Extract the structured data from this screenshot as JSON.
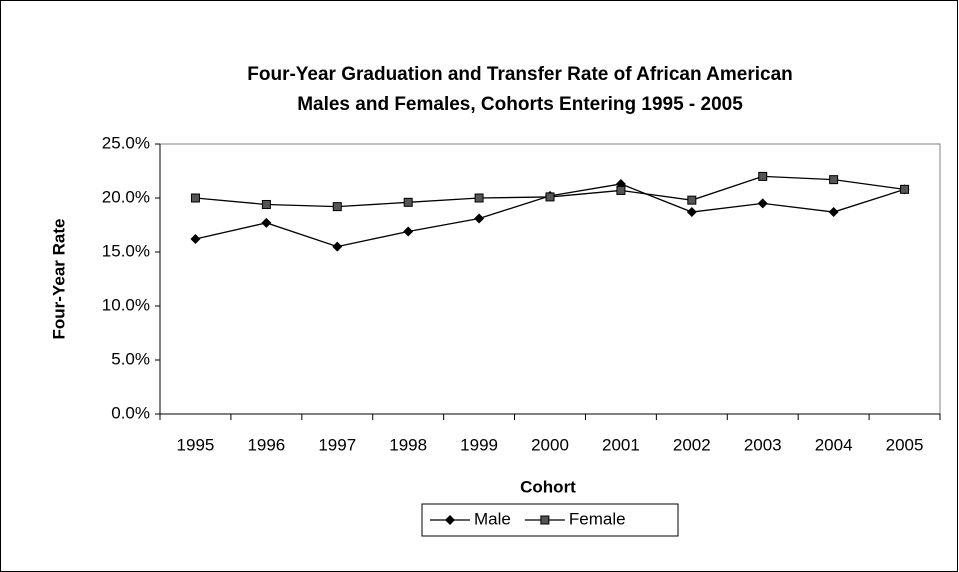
{
  "chart_data": {
    "type": "line",
    "title": [
      "Four-Year Graduation and Transfer Rate of African American",
      "Males and Females, Cohorts Entering 1995 - 2005"
    ],
    "x_label": "Cohort",
    "y_label": "Four-Year Rate",
    "categories": [
      "1995",
      "1996",
      "1997",
      "1998",
      "1999",
      "2000",
      "2001",
      "2002",
      "2003",
      "2004",
      "2005"
    ],
    "series": [
      {
        "name": "Male",
        "color": "#000000",
        "marker": "diamond",
        "values": [
          16.2,
          17.7,
          15.5,
          16.9,
          18.1,
          20.2,
          21.3,
          18.7,
          19.5,
          18.7,
          20.8
        ]
      },
      {
        "name": "Female",
        "color": "#000000",
        "marker": "square",
        "values": [
          20.0,
          19.4,
          19.2,
          19.6,
          20.0,
          20.1,
          20.7,
          19.8,
          22.0,
          21.7,
          20.8
        ]
      }
    ],
    "ylim": [
      0,
      25
    ],
    "yticks": [
      {
        "value": 0,
        "label": "0.0%"
      },
      {
        "value": 5,
        "label": "5.0%"
      },
      {
        "value": 10,
        "label": "10.0%"
      },
      {
        "value": 15,
        "label": "15.0%"
      },
      {
        "value": 20,
        "label": "20.0%"
      },
      {
        "value": 25,
        "label": "25.0%"
      }
    ],
    "legend": "bottom"
  }
}
